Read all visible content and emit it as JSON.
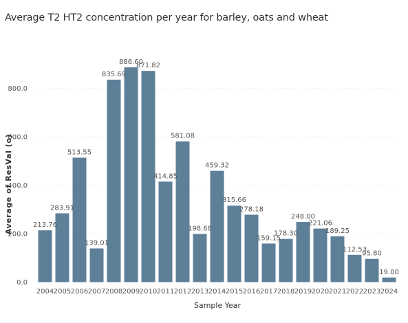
{
  "chart_data": {
    "type": "bar",
    "title": "Average T2 HT2 concentration per year for barley, oats and wheat",
    "xlabel": "Sample Year",
    "ylabel": "Average of ResVal (o)",
    "categories": [
      "2004",
      "2005",
      "2006",
      "2007",
      "2008",
      "2009",
      "2010",
      "2011",
      "2012",
      "2013",
      "2014",
      "2015",
      "2016",
      "2017",
      "2018",
      "2019",
      "2020",
      "2021",
      "2022",
      "2023",
      "2024"
    ],
    "values": [
      213.76,
      283.91,
      513.55,
      139.01,
      835.69,
      886.6,
      871.82,
      414.85,
      581.08,
      198.68,
      459.32,
      315.66,
      278.18,
      159.15,
      178.3,
      248.0,
      221.06,
      189.25,
      112.53,
      95.8,
      19.0
    ],
    "value_labels": [
      "213.76",
      "283.91",
      "513.55",
      "139.01",
      "835.69",
      "886.60",
      "871.82",
      "414.85",
      "581.08",
      "198.68",
      "459.32",
      "315.66",
      "278.18",
      "159.15",
      "178.30",
      "248.00",
      "221.06",
      "189.25",
      "112.53",
      "95.80",
      "19.00"
    ],
    "yticks": [
      0,
      200,
      400,
      600,
      800
    ],
    "ytick_labels": [
      "0.0",
      "200.0",
      "400.0",
      "600.0",
      "800.0"
    ],
    "ylim": [
      0,
      900
    ],
    "grid": true,
    "legend": false,
    "bar_color": "#5e7f98"
  }
}
